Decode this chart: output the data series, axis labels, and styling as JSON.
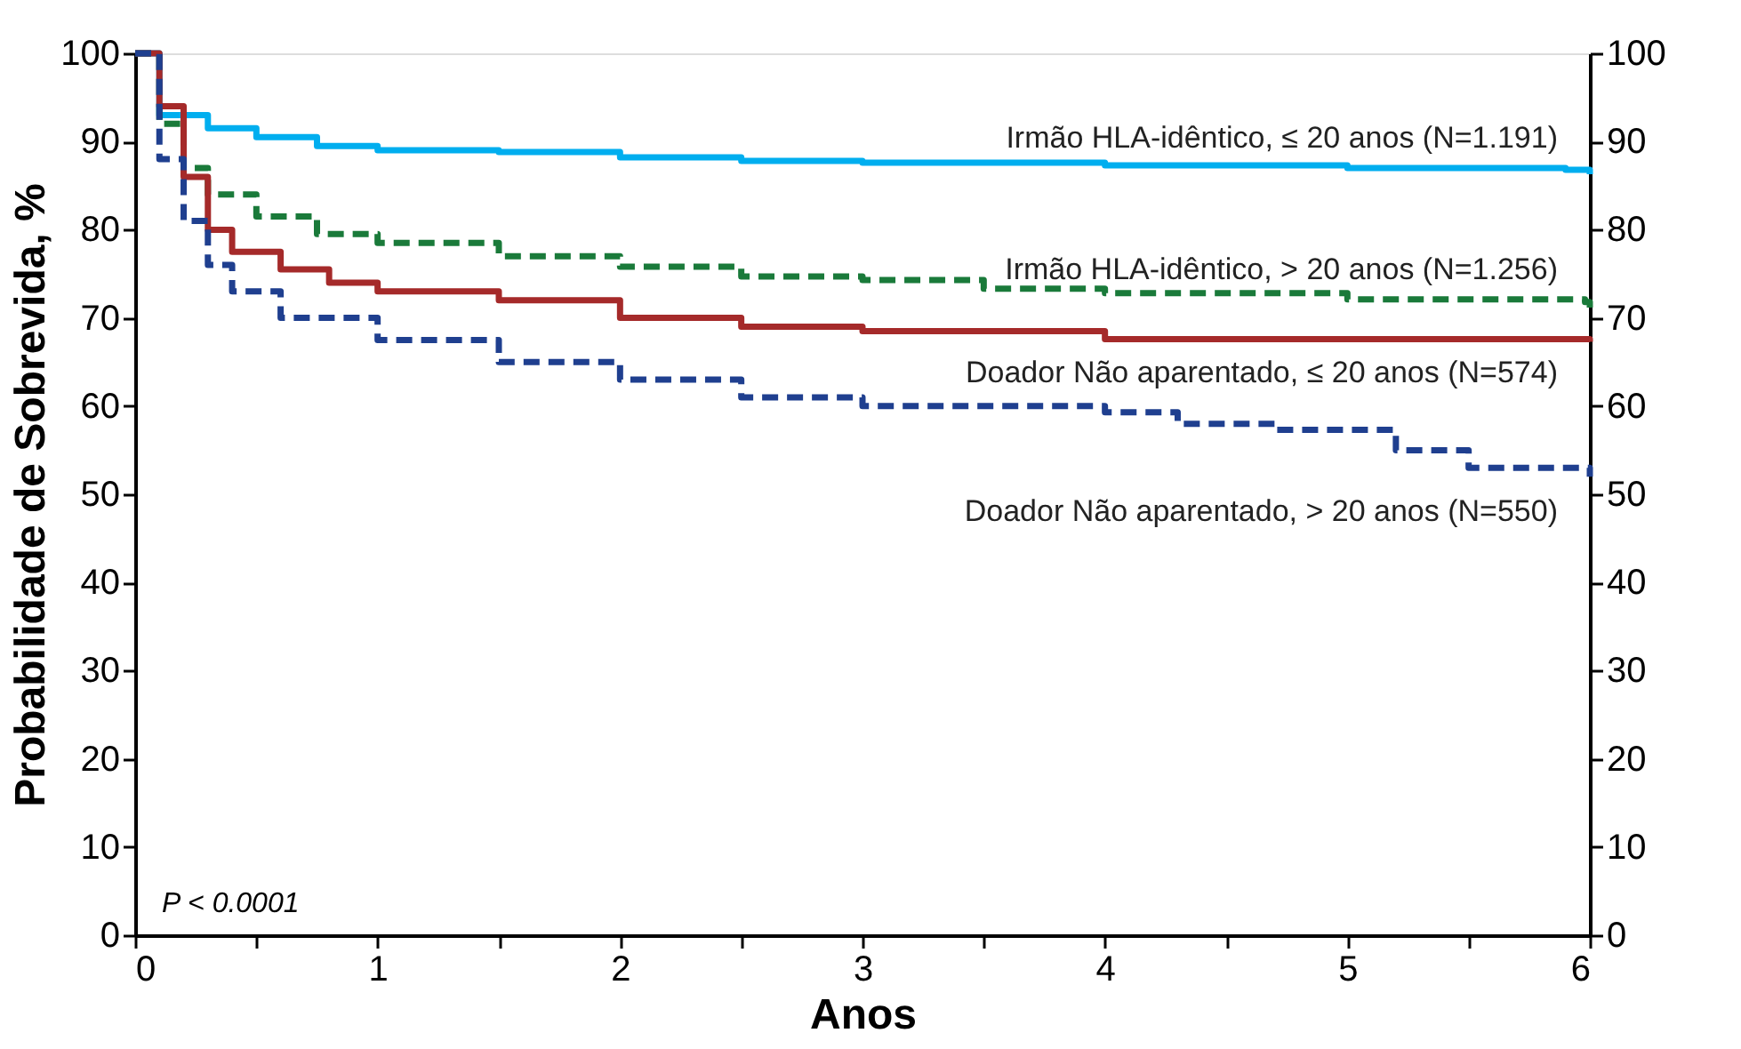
{
  "chart_data": {
    "type": "step",
    "xlabel": "Anos",
    "ylabel": "Probabilidade de Sobrevida, %",
    "xlim": [
      0,
      6
    ],
    "xticks": [
      0,
      {
        "value": 0.5,
        "label": null
      },
      1,
      {
        "value": 1.5,
        "label": null
      },
      2,
      {
        "value": 2.5,
        "label": null
      },
      3,
      {
        "value": 3.5,
        "label": null
      },
      4,
      {
        "value": 4.5,
        "label": null
      },
      5,
      {
        "value": 5.5,
        "label": null
      },
      6
    ],
    "ylim": [
      0,
      100
    ],
    "yticks": [
      0,
      10,
      20,
      30,
      40,
      50,
      60,
      70,
      80,
      90,
      100
    ],
    "y2lim": [
      0,
      100
    ],
    "y2ticks": [
      0,
      10,
      20,
      30,
      40,
      50,
      60,
      70,
      80,
      90,
      100
    ],
    "grid": false,
    "legend": false,
    "marker": "none",
    "annotations": [
      {
        "text": "P < 0.0001"
      }
    ],
    "series": [
      {
        "name": "Irmão HLA-idêntico, ≤ 20 anos (N=1.191)",
        "color": "#00aeef",
        "line_style": "solid",
        "x": [
          0,
          0.1,
          0.3,
          0.5,
          0.75,
          1,
          1.5,
          2,
          2.5,
          3,
          4,
          5,
          5.9,
          6
        ],
        "values": [
          100,
          93,
          91.5,
          90.5,
          89.5,
          89,
          88.8,
          88.2,
          87.8,
          87.6,
          87.3,
          87,
          86.8,
          86.3
        ]
      },
      {
        "name": "Irmão HLA-idêntico, > 20 anos (N=1.256)",
        "color": "#1a7a3a",
        "line_style": "dashed",
        "x": [
          0,
          0.1,
          0.2,
          0.3,
          0.5,
          0.75,
          1,
          1.5,
          2,
          2.5,
          3,
          3.5,
          4,
          5,
          5.98,
          6
        ],
        "values": [
          100,
          92,
          87,
          84,
          81.5,
          79.5,
          78.5,
          77,
          75.8,
          74.7,
          74.3,
          73.3,
          72.8,
          72.1,
          71.8,
          70.9
        ]
      },
      {
        "name": "Doador Não aparentado, ≤ 20 anos (N=574)",
        "color": "#a52a2a",
        "line_style": "solid",
        "x": [
          0,
          0.1,
          0.2,
          0.3,
          0.4,
          0.6,
          0.8,
          1,
          1.5,
          2,
          2.5,
          3,
          4,
          6
        ],
        "values": [
          100,
          94,
          86,
          80,
          77.5,
          75.5,
          74,
          73,
          72,
          70,
          69,
          68.5,
          67.6,
          67.3
        ]
      },
      {
        "name": "Doador Não aparentado, > 20 anos (N=550)",
        "color": "#1f3f8f",
        "line_style": "dashed",
        "x": [
          0,
          0.1,
          0.2,
          0.3,
          0.4,
          0.6,
          1,
          1.5,
          2,
          2.5,
          3,
          4,
          4.3,
          4.7,
          5.2,
          5.5,
          6
        ],
        "values": [
          100,
          88,
          81,
          76,
          73,
          70,
          67.5,
          65,
          63,
          61,
          60,
          59.3,
          58,
          57.3,
          55,
          53,
          52
        ]
      }
    ]
  }
}
